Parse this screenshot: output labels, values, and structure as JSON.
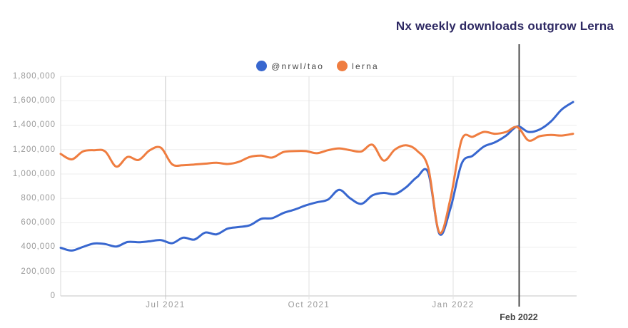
{
  "header": {
    "title": "Nx weekly downloads outgrow Lerna"
  },
  "chart_data": {
    "type": "line",
    "title": "Nx weekly downloads outgrow Lerna",
    "x_tick_labels": [
      "Jul 2021",
      "Oct 2021",
      "Jan 2022"
    ],
    "y_tick_labels": [
      "0",
      "200,000",
      "400,000",
      "600,000",
      "800,000",
      "1,000,000",
      "1,200,000",
      "1,400,000",
      "1,600,000",
      "1,800,000"
    ],
    "ylim": [
      0,
      1800000
    ],
    "y_tick_step": 200000,
    "grid": true,
    "legend_position": "top-center",
    "annotation": {
      "type": "vertical-line",
      "label": "Feb 2022"
    },
    "series": [
      {
        "name": "@nrwl/tao",
        "color": "#3867cf",
        "values": [
          395000,
          372000,
          402000,
          430000,
          425000,
          405000,
          442000,
          440000,
          448000,
          458000,
          432000,
          478000,
          462000,
          520000,
          505000,
          552000,
          565000,
          580000,
          632000,
          638000,
          680000,
          708000,
          742000,
          768000,
          790000,
          870000,
          800000,
          755000,
          825000,
          845000,
          835000,
          890000,
          975000,
          1010000,
          510000,
          720000,
          1085000,
          1150000,
          1225000,
          1260000,
          1315000,
          1390000,
          1345000,
          1365000,
          1430000,
          1530000,
          1590000
        ]
      },
      {
        "name": "lerna",
        "color": "#ef7d40",
        "values": [
          1165000,
          1120000,
          1185000,
          1195000,
          1185000,
          1060000,
          1140000,
          1115000,
          1195000,
          1215000,
          1080000,
          1072000,
          1078000,
          1085000,
          1092000,
          1082000,
          1100000,
          1140000,
          1150000,
          1135000,
          1180000,
          1188000,
          1188000,
          1170000,
          1195000,
          1210000,
          1195000,
          1185000,
          1240000,
          1110000,
          1200000,
          1235000,
          1190000,
          1050000,
          520000,
          800000,
          1280000,
          1305000,
          1345000,
          1330000,
          1345000,
          1385000,
          1275000,
          1310000,
          1320000,
          1315000,
          1330000
        ]
      }
    ]
  }
}
